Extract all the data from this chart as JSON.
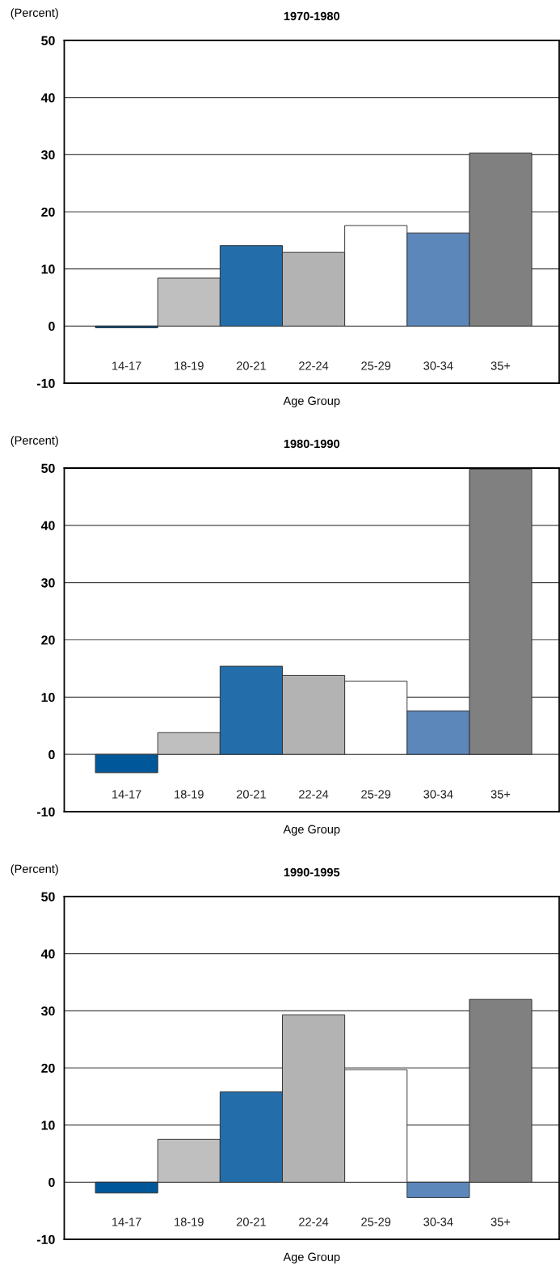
{
  "chart_data": [
    {
      "type": "bar",
      "title": "1970-1980",
      "ylabel": "(Percent)",
      "xlabel": "Age Group",
      "categories": [
        "14-17",
        "18-19",
        "20-21",
        "22-24",
        "25-29",
        "30-34",
        "35+"
      ],
      "values": [
        -0.3,
        8.4,
        14.1,
        12.9,
        17.6,
        16.3,
        30.3
      ],
      "colors": [
        "#00589b",
        "#bfbfbf",
        "#236eaa",
        "#b3b3b3",
        "#ffffff",
        "#5c87bb",
        "#808080"
      ],
      "ylim": [
        -10,
        50
      ],
      "yticks": [
        -10,
        0,
        10,
        20,
        30,
        40,
        50
      ],
      "grid": "y"
    },
    {
      "type": "bar",
      "title": "1980-1990",
      "ylabel": "(Percent)",
      "xlabel": "Age Group",
      "categories": [
        "14-17",
        "18-19",
        "20-21",
        "22-24",
        "25-29",
        "30-34",
        "35+"
      ],
      "values": [
        -3.2,
        3.8,
        15.4,
        13.8,
        12.8,
        7.6,
        49.8
      ],
      "colors": [
        "#00589b",
        "#bfbfbf",
        "#236eaa",
        "#b3b3b3",
        "#ffffff",
        "#5c87bb",
        "#808080"
      ],
      "ylim": [
        -10,
        50
      ],
      "yticks": [
        -10,
        0,
        10,
        20,
        30,
        40,
        50
      ],
      "grid": "y"
    },
    {
      "type": "bar",
      "title": "1990-1995",
      "ylabel": "(Percent)",
      "xlabel": "Age Group",
      "categories": [
        "14-17",
        "18-19",
        "20-21",
        "22-24",
        "25-29",
        "30-34",
        "35+"
      ],
      "values": [
        -1.9,
        7.5,
        15.8,
        29.3,
        19.7,
        -2.7,
        32.0
      ],
      "colors": [
        "#00589b",
        "#bfbfbf",
        "#236eaa",
        "#b3b3b3",
        "#ffffff",
        "#5c87bb",
        "#808080"
      ],
      "ylim": [
        -10,
        50
      ],
      "yticks": [
        -10,
        0,
        10,
        20,
        30,
        40,
        50
      ],
      "grid": "y"
    }
  ]
}
